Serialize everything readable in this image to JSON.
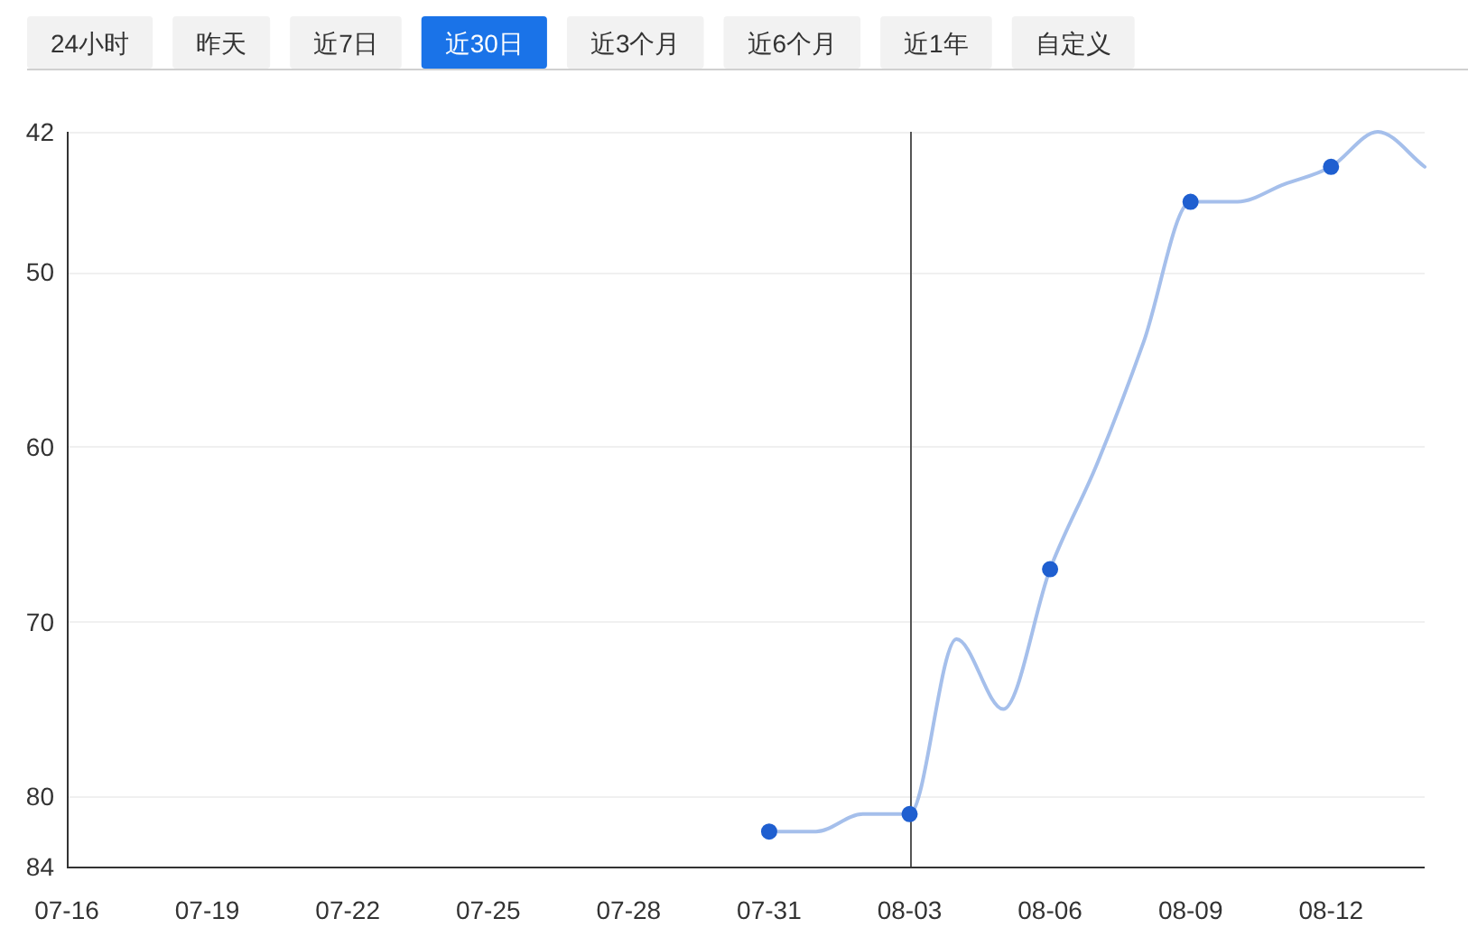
{
  "chart_data": {
    "type": "line",
    "annotations": [
      "24小时",
      "昨天",
      "近7日",
      "近30日",
      "近3个月",
      "近6个月",
      "近1年",
      "自定义"
    ],
    "categories": [
      "07-16",
      null,
      null,
      "07-19",
      null,
      null,
      "07-22",
      null,
      null,
      "07-25",
      null,
      null,
      "07-28",
      null,
      null,
      "07-31",
      null,
      null,
      "08-03",
      null,
      null,
      "08-06",
      null,
      null,
      "08-09",
      null,
      null,
      "08-12",
      null,
      null
    ],
    "series": [
      {
        "color": "#a5bfeb",
        "marker": "none",
        "values": [
          null,
          null,
          null,
          null,
          null,
          null,
          null,
          null,
          null,
          null,
          null,
          null,
          null,
          null,
          null,
          82,
          82,
          81,
          81,
          71,
          75,
          67,
          61,
          54,
          46,
          46,
          45,
          44,
          42,
          44
        ]
      },
      {
        "type": "scatter",
        "color": "#1f5fd0",
        "x": [
          "07-31",
          "08-03",
          "08-06",
          "08-09",
          "08-12"
        ],
        "values": [
          82,
          81,
          67,
          46,
          44
        ]
      }
    ],
    "ylim": [
      84,
      42
    ],
    "yticks": [
      42,
      50,
      60,
      70,
      80,
      84
    ],
    "grid": "y",
    "marker": "circle",
    "line_style": "solid",
    "ref_lines": [
      {
        "axis": "x",
        "value": "08-03",
        "color": "#555555"
      }
    ]
  }
}
